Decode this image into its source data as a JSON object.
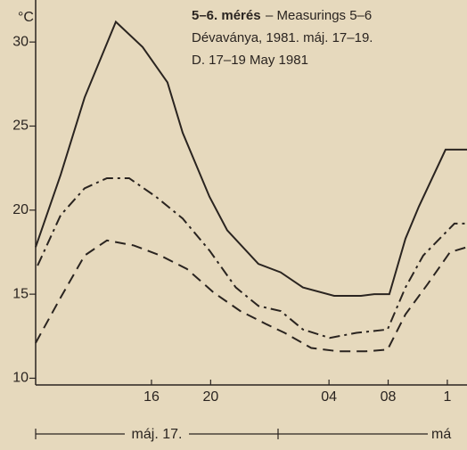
{
  "chart_data": {
    "type": "line",
    "title": "5–6. mérés",
    "subtitle": "– Measurings 5–6",
    "annotations": [
      "Dévaványa, 1981. máj. 17–19.",
      "D. 17–19 May 1981"
    ],
    "y_label": "°C",
    "periods": [
      "máj. 17.",
      "má"
    ],
    "xlim": [
      8.17,
      37.33
    ],
    "ylim": [
      9.6,
      32.5
    ],
    "xticks": [
      {
        "value": 16,
        "label": "16"
      },
      {
        "value": 20,
        "label": "20"
      },
      {
        "value": 28,
        "label": "04"
      },
      {
        "value": 32,
        "label": "08"
      },
      {
        "value": 36,
        "label": "1"
      }
    ],
    "yticks": [
      10,
      15,
      20,
      25,
      30
    ],
    "series": [
      {
        "color": "#2a2420",
        "dash": "solid",
        "x": [
          8.17,
          9.86,
          11.48,
          13.59,
          15.4,
          17.08,
          18.11,
          19.92,
          21.12,
          23.23,
          24.73,
          26.24,
          28.35,
          30.16,
          31.06,
          32.08,
          33.17,
          34.07,
          35.88,
          37.33
        ],
        "values": [
          17.8,
          22.1,
          26.7,
          31.2,
          29.7,
          27.6,
          24.6,
          20.8,
          18.8,
          16.8,
          16.3,
          15.4,
          14.9,
          14.9,
          15.0,
          15.0,
          18.3,
          20.2,
          23.6,
          23.6
        ]
      },
      {
        "color": "#2a2420",
        "dash": "dashdot",
        "x": [
          8.3,
          9.86,
          11.48,
          12.99,
          14.49,
          16.3,
          18.11,
          19.92,
          21.7,
          23.23,
          24.73,
          26.24,
          28.05,
          29.86,
          31.96,
          33.17,
          34.37,
          36.48,
          37.33
        ],
        "values": [
          16.7,
          19.7,
          21.3,
          21.9,
          21.9,
          20.8,
          19.5,
          17.6,
          15.4,
          14.3,
          14.0,
          12.9,
          12.4,
          12.7,
          12.9,
          15.4,
          17.3,
          19.2,
          19.2
        ]
      },
      {
        "color": "#2a2420",
        "dash": "dashed",
        "x": [
          8.17,
          9.86,
          11.48,
          12.99,
          14.8,
          16.6,
          18.4,
          20.2,
          22.0,
          23.8,
          25.0,
          26.8,
          28.65,
          30.46,
          31.96,
          33.17,
          34.67,
          36.18,
          37.33
        ],
        "values": [
          12.1,
          14.8,
          17.3,
          18.2,
          17.9,
          17.3,
          16.5,
          15.1,
          14.0,
          13.2,
          12.7,
          11.8,
          11.6,
          11.6,
          11.7,
          13.8,
          15.6,
          17.5,
          17.8
        ]
      }
    ]
  }
}
